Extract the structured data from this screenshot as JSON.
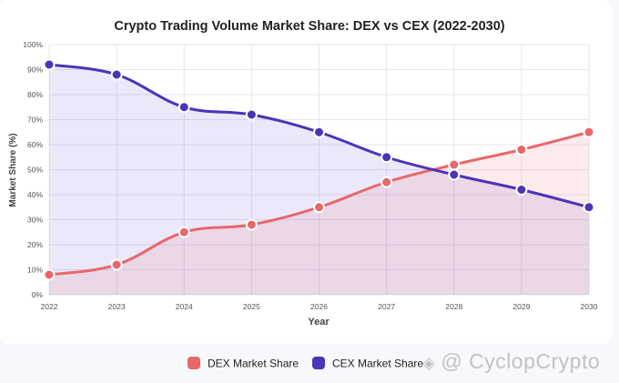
{
  "chart_data": {
    "type": "line",
    "title": "Crypto Trading Volume Market Share: DEX vs CEX (2022-2030)",
    "xlabel": "Year",
    "ylabel": "Market Share (%)",
    "categories": [
      "2022",
      "2023",
      "2024",
      "2025",
      "2026",
      "2027",
      "2028",
      "2029",
      "2030"
    ],
    "ylim": [
      0,
      100
    ],
    "yticks": [
      "0%",
      "10%",
      "20%",
      "30%",
      "40%",
      "50%",
      "60%",
      "70%",
      "80%",
      "90%",
      "100%"
    ],
    "grid": true,
    "legend_position": "bottom",
    "series": [
      {
        "name": "DEX Market Share",
        "values": [
          8,
          12,
          25,
          28,
          35,
          45,
          52,
          58,
          65
        ],
        "color": "#e8676b",
        "fill": "rgba(232,103,107,0.13)"
      },
      {
        "name": "CEX Market Share",
        "values": [
          92,
          88,
          75,
          72,
          65,
          55,
          48,
          42,
          35
        ],
        "color": "#4b34b8",
        "fill": "rgba(110,90,220,0.14)"
      }
    ]
  },
  "watermark": {
    "text": "@ CyclopCrypto",
    "icon": "binance-logo-icon"
  }
}
